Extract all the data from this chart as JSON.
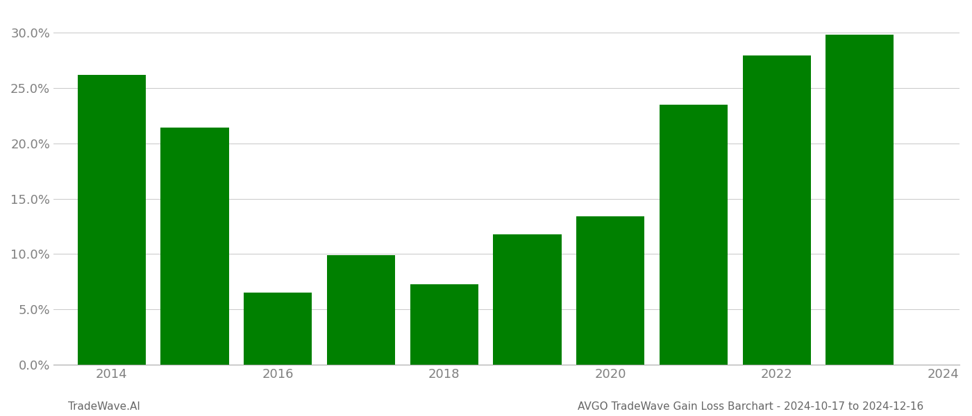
{
  "years": [
    2014,
    2015,
    2016,
    2017,
    2018,
    2019,
    2020,
    2021,
    2022,
    2023
  ],
  "values": [
    0.262,
    0.214,
    0.065,
    0.099,
    0.073,
    0.118,
    0.134,
    0.235,
    0.279,
    0.298
  ],
  "bar_color": "#008000",
  "ylim": [
    0,
    0.32
  ],
  "yticks": [
    0.0,
    0.05,
    0.1,
    0.15,
    0.2,
    0.25,
    0.3
  ],
  "xlabel": "",
  "ylabel": "",
  "title": "",
  "footer_left": "TradeWave.AI",
  "footer_right": "AVGO TradeWave Gain Loss Barchart - 2024-10-17 to 2024-12-16",
  "background_color": "#ffffff",
  "grid_color": "#cccccc",
  "bar_width": 0.82,
  "xtick_fontsize": 13,
  "ytick_fontsize": 13,
  "footer_fontsize": 11,
  "xtick_label_years": [
    2014,
    2016,
    2018,
    2020,
    2022,
    2024
  ],
  "xlim_left": -0.7,
  "xlim_right": 10.2
}
